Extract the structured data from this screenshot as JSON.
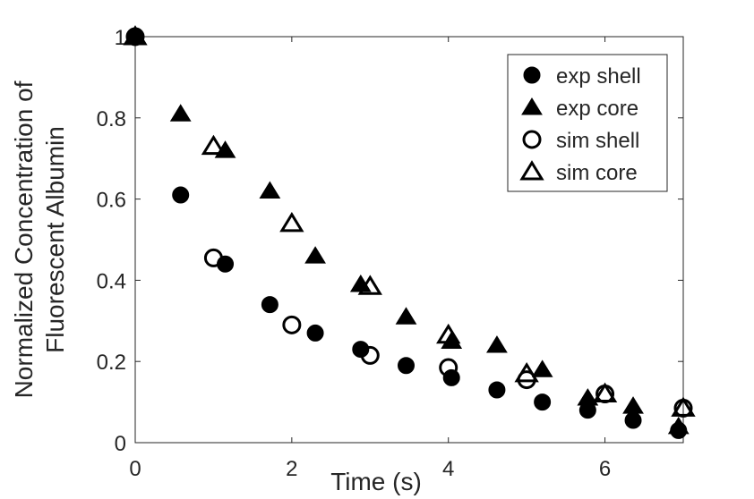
{
  "chart_data": {
    "type": "scatter",
    "xlabel": "Time (s)",
    "ylabel": [
      "Normalized Concentration of",
      "Fluorescent Albumin"
    ],
    "xlim": [
      0,
      7
    ],
    "ylim": [
      0,
      1
    ],
    "xticks": [
      "0",
      "2",
      "4",
      "6"
    ],
    "yticks": [
      "0",
      "0.2",
      "0.4",
      "0.6",
      "0.8",
      "1"
    ],
    "grid": false,
    "legend_position": "top-right",
    "series": [
      {
        "name": "exp shell",
        "marker": "circle",
        "filled": true,
        "color": "#000000",
        "points": [
          [
            0,
            1.0
          ],
          [
            0.58,
            0.61
          ],
          [
            1.15,
            0.44
          ],
          [
            1.72,
            0.34
          ],
          [
            2.3,
            0.27
          ],
          [
            2.88,
            0.23
          ],
          [
            3.46,
            0.19
          ],
          [
            4.04,
            0.16
          ],
          [
            4.62,
            0.13
          ],
          [
            5.2,
            0.1
          ],
          [
            5.78,
            0.08
          ],
          [
            6.36,
            0.055
          ],
          [
            6.94,
            0.03
          ]
        ]
      },
      {
        "name": "exp core",
        "marker": "triangle",
        "filled": true,
        "color": "#000000",
        "points": [
          [
            0,
            1.0
          ],
          [
            0.58,
            0.81
          ],
          [
            1.15,
            0.72
          ],
          [
            1.72,
            0.62
          ],
          [
            2.3,
            0.46
          ],
          [
            2.88,
            0.39
          ],
          [
            3.46,
            0.31
          ],
          [
            4.04,
            0.25
          ],
          [
            4.62,
            0.24
          ],
          [
            5.2,
            0.18
          ],
          [
            5.78,
            0.11
          ],
          [
            6.36,
            0.09
          ],
          [
            6.94,
            0.04
          ]
        ]
      },
      {
        "name": "sim shell",
        "marker": "circle",
        "filled": false,
        "color": "#000000",
        "points": [
          [
            0,
            1.0
          ],
          [
            1.0,
            0.455
          ],
          [
            2.0,
            0.29
          ],
          [
            3.0,
            0.215
          ],
          [
            4.0,
            0.185
          ],
          [
            5.0,
            0.155
          ],
          [
            6.0,
            0.12
          ],
          [
            7.0,
            0.085
          ]
        ]
      },
      {
        "name": "sim core",
        "marker": "triangle",
        "filled": false,
        "color": "#000000",
        "points": [
          [
            0,
            1.0
          ],
          [
            1.0,
            0.73
          ],
          [
            2.0,
            0.54
          ],
          [
            3.0,
            0.385
          ],
          [
            4.0,
            0.265
          ],
          [
            5.0,
            0.17
          ],
          [
            6.0,
            0.12
          ],
          [
            7.0,
            0.085
          ]
        ]
      }
    ]
  }
}
